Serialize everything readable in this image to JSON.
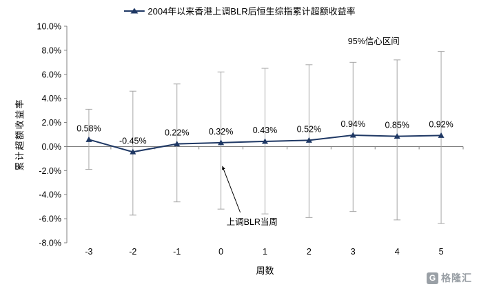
{
  "chart_data": {
    "type": "line",
    "title": "2004年以来香港上调BLR后恒生综指累计超额收益率",
    "ylabel": "累计超额收益率",
    "xlabel": "周数",
    "categories": [
      "-3",
      "-2",
      "-1",
      "0",
      "1",
      "2",
      "3",
      "4",
      "5"
    ],
    "series": [
      {
        "name": "2004年以来香港上调BLR后恒生综指累计超额收益率",
        "values": [
          0.58,
          -0.45,
          0.22,
          0.32,
          0.43,
          0.52,
          0.94,
          0.85,
          0.92
        ],
        "labels": [
          "0.58%",
          "-0.45%",
          "0.22%",
          "0.32%",
          "0.43%",
          "0.52%",
          "0.94%",
          "0.85%",
          "0.92%"
        ]
      }
    ],
    "confidence_interval": {
      "label": "95%信心区间",
      "high": [
        3.1,
        4.6,
        5.2,
        6.2,
        6.5,
        6.8,
        7.0,
        7.2,
        7.9
      ],
      "low": [
        -1.9,
        -5.7,
        -4.6,
        -5.2,
        -5.6,
        -5.9,
        -5.4,
        -6.1,
        -6.4
      ]
    },
    "annotation": {
      "label": "上调BLR当周",
      "target_week": "0"
    },
    "y_axis": {
      "min": -8,
      "max": 10,
      "step": 2,
      "tick_labels": [
        "10.0%",
        "8.0%",
        "6.0%",
        "4.0%",
        "2.0%",
        "0.0%",
        "-2.0%",
        "-4.0%",
        "-6.0%",
        "-8.0%"
      ]
    },
    "ylim": [
      -8,
      10
    ],
    "legend_position": "top",
    "grid": "off",
    "colors": {
      "line": "#1F3864",
      "error_bar": "#A6A6A6",
      "axis": "#808080",
      "text": "#000000"
    }
  },
  "watermark": {
    "icon_letter": "G",
    "text": "格隆汇"
  }
}
